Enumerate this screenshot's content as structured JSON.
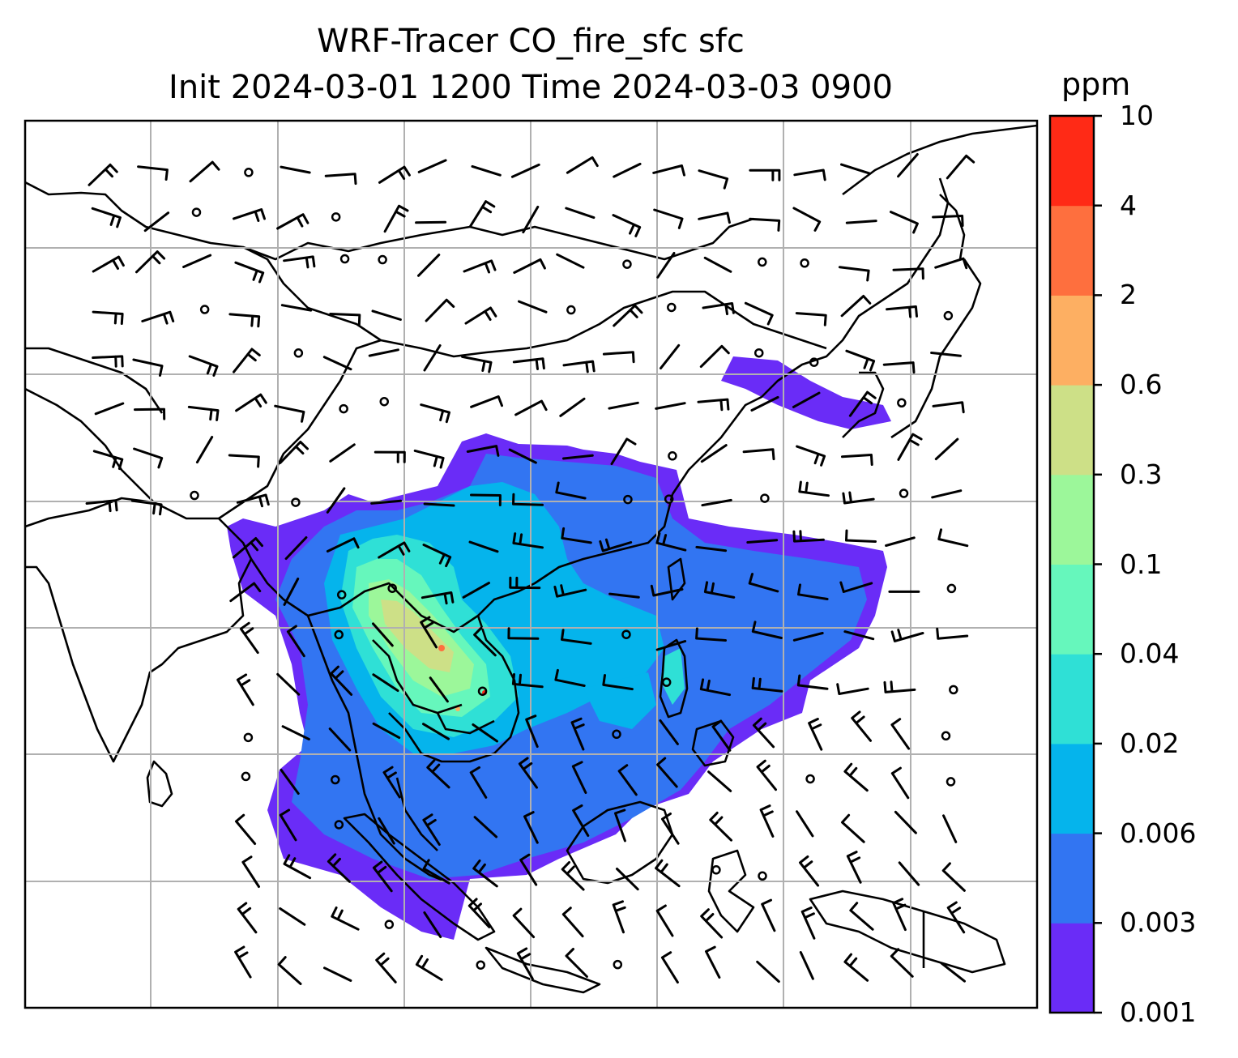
{
  "title": {
    "line1": "WRF-Tracer CO_fire_sfc sfc",
    "line2": "Init 2024-03-01 1200 Time 2024-03-03 0900"
  },
  "colorbar": {
    "unit": "ppm",
    "ticks": [
      "10",
      "4",
      "2",
      "0.6",
      "0.3",
      "0.1",
      "0.04",
      "0.02",
      "0.006",
      "0.003",
      "0.001"
    ],
    "levels": [
      {
        "lo": "0.001",
        "hi": "0.003",
        "color": "#6a2cf7"
      },
      {
        "lo": "0.003",
        "hi": "0.006",
        "color": "#3275f2"
      },
      {
        "lo": "0.006",
        "hi": "0.02",
        "color": "#05b4ec"
      },
      {
        "lo": "0.02",
        "hi": "0.04",
        "color": "#2fe0d6"
      },
      {
        "lo": "0.04",
        "hi": "0.1",
        "color": "#66f7bc"
      },
      {
        "lo": "0.1",
        "hi": "0.3",
        "color": "#9cf79a"
      },
      {
        "lo": "0.3",
        "hi": "0.6",
        "color": "#cde087"
      },
      {
        "lo": "0.6",
        "hi": "2",
        "color": "#fdaf62"
      },
      {
        "lo": "2",
        "hi": "4",
        "color": "#fe6f3e"
      },
      {
        "lo": "4",
        "hi": "10",
        "color": "#ff2a16"
      }
    ]
  },
  "map": {
    "projection": "regional",
    "region": "South and Southeast Asia, East Asia",
    "gridlines": true,
    "coastlines": true,
    "country_borders": true,
    "wind_barbs": true,
    "field": "CO_fire_sfc"
  }
}
